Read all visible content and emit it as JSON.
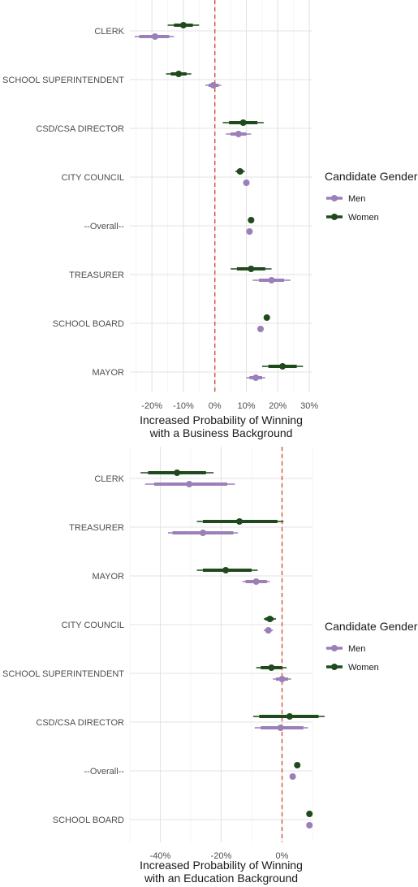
{
  "colors": {
    "men": "#9b7fb8",
    "women": "#1f4a1c",
    "zero_line": "#d9442a",
    "grid": "#e6e6e6"
  },
  "chart_data": [
    {
      "type": "dot-and-whisker",
      "xlabel": "Increased Probability of Winning\nwith a Business Background",
      "xlim": [
        -0.27,
        0.31
      ],
      "xticks": [
        -0.2,
        -0.1,
        0,
        0.1,
        0.2,
        0.3
      ],
      "xtick_labels": [
        "-20%",
        "-10%",
        "0%",
        "10%",
        "20%",
        "30%"
      ],
      "zero_line": 0,
      "legend": {
        "title": "Candidate Gender",
        "entries": [
          "Men",
          "Women"
        ],
        "placement": "right"
      },
      "categories": [
        "CLERK",
        "SCHOOL SUPERINTENDENT",
        "CSD/CSA DIRECTOR",
        "CITY COUNCIL",
        "--Overall--",
        "TREASURER",
        "SCHOOL BOARD",
        "MAYOR"
      ],
      "series": [
        {
          "name": "Women",
          "points": [
            {
              "est": -0.1,
              "lo95": -0.15,
              "hi95": -0.05,
              "lo90": -0.13,
              "hi90": -0.07
            },
            {
              "est": -0.115,
              "lo95": -0.155,
              "hi95": -0.075,
              "lo90": -0.14,
              "hi90": -0.09
            },
            {
              "est": 0.09,
              "lo95": 0.025,
              "hi95": 0.155,
              "lo90": 0.045,
              "hi90": 0.135
            },
            {
              "est": 0.08,
              "lo95": 0.065,
              "hi95": 0.095,
              "lo90": 0.07,
              "hi90": 0.09
            },
            {
              "est": 0.115,
              "lo95": 0.11,
              "hi95": 0.12,
              "lo90": 0.112,
              "hi90": 0.118
            },
            {
              "est": 0.115,
              "lo95": 0.05,
              "hi95": 0.18,
              "lo90": 0.07,
              "hi90": 0.16
            },
            {
              "est": 0.165,
              "lo95": 0.155,
              "hi95": 0.175,
              "lo90": 0.158,
              "hi90": 0.172
            },
            {
              "est": 0.215,
              "lo95": 0.15,
              "hi95": 0.28,
              "lo90": 0.17,
              "hi90": 0.26
            }
          ]
        },
        {
          "name": "Men",
          "points": [
            {
              "est": -0.19,
              "lo95": -0.255,
              "hi95": -0.13,
              "lo90": -0.24,
              "hi90": -0.145
            },
            {
              "est": -0.005,
              "lo95": -0.03,
              "hi95": 0.02,
              "lo90": -0.02,
              "hi90": 0.012
            },
            {
              "est": 0.075,
              "lo95": 0.035,
              "hi95": 0.115,
              "lo90": 0.05,
              "hi90": 0.1
            },
            {
              "est": 0.1,
              "lo95": 0.095,
              "hi95": 0.105,
              "lo90": 0.097,
              "hi90": 0.103
            },
            {
              "est": 0.11,
              "lo95": 0.105,
              "hi95": 0.115,
              "lo90": 0.107,
              "hi90": 0.113
            },
            {
              "est": 0.18,
              "lo95": 0.12,
              "hi95": 0.24,
              "lo90": 0.14,
              "hi90": 0.22
            },
            {
              "est": 0.145,
              "lo95": 0.14,
              "hi95": 0.15,
              "lo90": 0.142,
              "hi90": 0.148
            },
            {
              "est": 0.13,
              "lo95": 0.1,
              "hi95": 0.16,
              "lo90": 0.11,
              "hi90": 0.15
            }
          ]
        }
      ]
    },
    {
      "type": "dot-and-whisker",
      "xlabel": "Increased Probability of Winning\nwith an Education Background",
      "xlim": [
        -0.5,
        0.1
      ],
      "xticks": [
        -0.4,
        -0.2,
        0
      ],
      "xtick_labels": [
        "-40%",
        "-20%",
        "0%"
      ],
      "zero_line": 0,
      "legend": {
        "title": "Candidate Gender",
        "entries": [
          "Men",
          "Women"
        ],
        "placement": "right"
      },
      "categories": [
        "CLERK",
        "TREASURER",
        "MAYOR",
        "CITY COUNCIL",
        "SCHOOL SUPERINTENDENT",
        "CSD/CSA DIRECTOR",
        "--Overall--",
        "SCHOOL BOARD"
      ],
      "series": [
        {
          "name": "Women",
          "points": [
            {
              "est": -0.345,
              "lo95": -0.465,
              "hi95": -0.225,
              "lo90": -0.44,
              "hi90": -0.25
            },
            {
              "est": -0.14,
              "lo95": -0.28,
              "hi95": 0.005,
              "lo90": -0.26,
              "hi90": -0.015
            },
            {
              "est": -0.185,
              "lo95": -0.28,
              "hi95": -0.08,
              "lo90": -0.26,
              "hi90": -0.1
            },
            {
              "est": -0.04,
              "lo95": -0.06,
              "hi95": -0.02,
              "lo90": -0.055,
              "hi90": -0.028
            },
            {
              "est": -0.035,
              "lo95": -0.085,
              "hi95": 0.015,
              "lo90": -0.07,
              "hi90": 0.0
            },
            {
              "est": 0.025,
              "lo95": -0.095,
              "hi95": 0.14,
              "lo90": -0.075,
              "hi90": 0.12
            },
            {
              "est": 0.05,
              "lo95": 0.045,
              "hi95": 0.055,
              "lo90": 0.047,
              "hi90": 0.053
            },
            {
              "est": 0.09,
              "lo95": 0.08,
              "hi95": 0.1,
              "lo90": 0.083,
              "hi90": 0.097
            }
          ]
        },
        {
          "name": "Men",
          "points": [
            {
              "est": -0.305,
              "lo95": -0.45,
              "hi95": -0.155,
              "lo90": -0.42,
              "hi90": -0.18
            },
            {
              "est": -0.26,
              "lo95": -0.375,
              "hi95": -0.145,
              "lo90": -0.36,
              "hi90": -0.16
            },
            {
              "est": -0.085,
              "lo95": -0.13,
              "hi95": -0.04,
              "lo90": -0.12,
              "hi90": -0.05
            },
            {
              "est": -0.045,
              "lo95": -0.06,
              "hi95": -0.03,
              "lo90": -0.055,
              "hi90": -0.035
            },
            {
              "est": 0.0,
              "lo95": -0.03,
              "hi95": 0.03,
              "lo90": -0.02,
              "hi90": 0.02
            },
            {
              "est": -0.005,
              "lo95": -0.09,
              "hi95": 0.085,
              "lo90": -0.07,
              "hi90": 0.07
            },
            {
              "est": 0.035,
              "lo95": 0.03,
              "hi95": 0.04,
              "lo90": 0.032,
              "hi90": 0.038
            },
            {
              "est": 0.09,
              "lo95": 0.085,
              "hi95": 0.095,
              "lo90": 0.087,
              "hi90": 0.093
            }
          ]
        }
      ]
    }
  ]
}
